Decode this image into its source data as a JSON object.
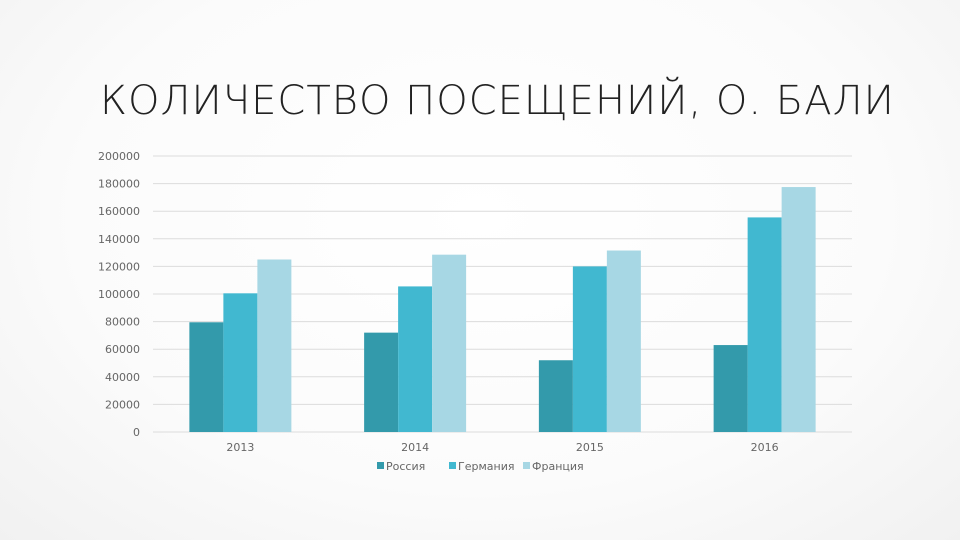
{
  "chart_data": {
    "type": "bar",
    "title": "КОЛИЧЕСТВО ПОСЕЩЕНИЙ, О. БАЛИ",
    "categories": [
      "2013",
      "2014",
      "2015",
      "2016"
    ],
    "series": [
      {
        "name": "Россия",
        "color": "#339aab",
        "values": [
          79500,
          72000,
          52000,
          63000
        ]
      },
      {
        "name": "Германия",
        "color": "#41b8d0",
        "values": [
          100500,
          105500,
          120000,
          155500
        ]
      },
      {
        "name": "Франция",
        "color": "#a7d7e4",
        "values": [
          125000,
          128500,
          131500,
          177500
        ]
      }
    ],
    "y_ticks": [
      "0",
      "20000",
      "40000",
      "60000",
      "80000",
      "100000",
      "120000",
      "140000",
      "160000",
      "180000",
      "200000"
    ],
    "ylim": [
      0,
      200000
    ],
    "grid": true,
    "legend_position": "bottom"
  }
}
